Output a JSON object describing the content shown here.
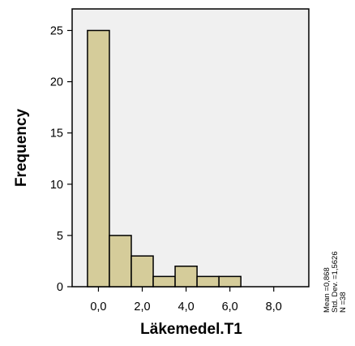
{
  "chart_data": {
    "type": "bar",
    "xlabel": "Läkemedel.T1",
    "ylabel": "Frequency",
    "bins": [
      {
        "start": -0.5,
        "end": 0.5,
        "count": 25
      },
      {
        "start": 0.5,
        "end": 1.5,
        "count": 5
      },
      {
        "start": 1.5,
        "end": 2.5,
        "count": 3
      },
      {
        "start": 2.5,
        "end": 3.5,
        "count": 1
      },
      {
        "start": 3.5,
        "end": 4.5,
        "count": 2
      },
      {
        "start": 4.5,
        "end": 5.5,
        "count": 1
      },
      {
        "start": 5.5,
        "end": 6.5,
        "count": 1
      }
    ],
    "xlim": [
      -1.2,
      9.6
    ],
    "ylim": [
      0,
      27.1
    ],
    "xticks": [
      0,
      2,
      4,
      6,
      8
    ],
    "xtick_labels": [
      "0,0",
      "2,0",
      "4,0",
      "6,0",
      "8,0"
    ],
    "yticks": [
      0,
      5,
      10,
      15,
      20,
      25
    ],
    "ytick_labels": [
      "0",
      "5",
      "10",
      "15",
      "20",
      "25"
    ],
    "stats": {
      "mean": "Mean =0,868",
      "std_dev": "Std. Dev. =1,5626",
      "n": "N =38"
    },
    "grid": false,
    "colors": {
      "bar_fill": "#d5cc9a",
      "bar_stroke": "#000000",
      "plot_background": "#f0f0f0"
    }
  }
}
